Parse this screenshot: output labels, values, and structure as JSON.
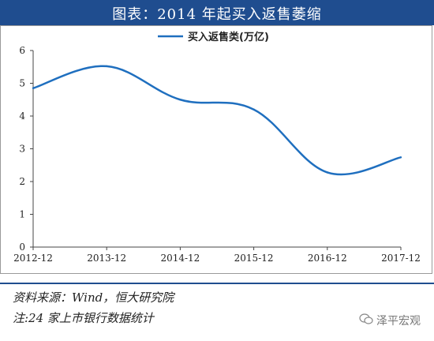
{
  "header": {
    "title": "图表：2014 年起买入返售萎缩"
  },
  "chart_data": {
    "type": "line",
    "title": "",
    "xlabel": "",
    "ylabel": "",
    "ylim": [
      0,
      6
    ],
    "y_ticks": [
      0,
      1,
      2,
      3,
      4,
      5,
      6
    ],
    "categories": [
      "2012-12",
      "2013-12",
      "2014-12",
      "2015-12",
      "2016-12",
      "2017-12"
    ],
    "series": [
      {
        "name": "买入返售类(万亿)",
        "color": "#1f6fbf",
        "values": [
          4.85,
          5.52,
          4.5,
          4.2,
          2.28,
          2.74
        ]
      }
    ],
    "legend": "top-center",
    "grid": false
  },
  "footer": {
    "source": "资料来源：Wind，恒大研究院",
    "note": "注:24 家上市银行数据统计",
    "watermark": "泽平宏观"
  }
}
